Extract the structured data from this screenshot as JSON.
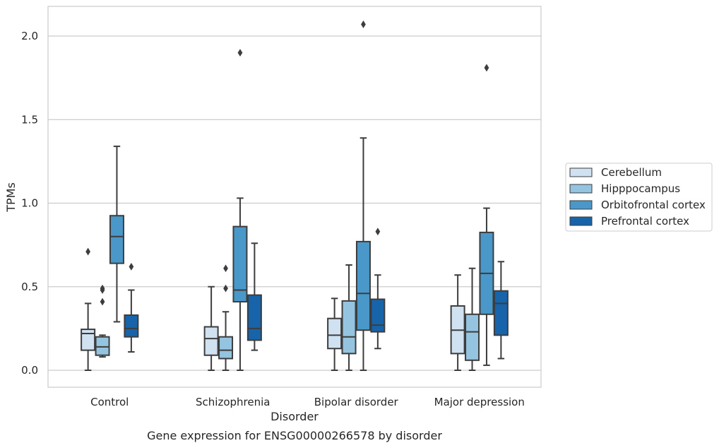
{
  "chart_data": {
    "type": "boxplot",
    "title": "",
    "caption": "Gene expression for ENSG00000266578 by disorder",
    "xlabel": "Disorder",
    "ylabel": "TPMs",
    "ylim": [
      -0.1,
      2.18
    ],
    "yticks": [
      "0.0",
      "0.5",
      "1.0",
      "1.5",
      "2.0"
    ],
    "grid": true,
    "legend_position": "right",
    "categories": [
      "Control",
      "Schizophrenia",
      "Bipolar disorder",
      "Major depression"
    ],
    "series": [
      {
        "name": "Cerebellum",
        "color": "#d0e1f2",
        "boxes": [
          {
            "whislo": 0.0,
            "q1": 0.12,
            "med": 0.22,
            "q3": 0.245,
            "whishi": 0.4,
            "fliers": [
              0.71
            ]
          },
          {
            "whislo": 0.0,
            "q1": 0.09,
            "med": 0.19,
            "q3": 0.26,
            "whishi": 0.5,
            "fliers": []
          },
          {
            "whislo": 0.0,
            "q1": 0.13,
            "med": 0.21,
            "q3": 0.31,
            "whishi": 0.43,
            "fliers": []
          },
          {
            "whislo": 0.0,
            "q1": 0.1,
            "med": 0.24,
            "q3": 0.385,
            "whishi": 0.57,
            "fliers": []
          }
        ]
      },
      {
        "name": "Hipppocampus",
        "color": "#94c4df",
        "boxes": [
          {
            "whislo": 0.08,
            "q1": 0.09,
            "med": 0.14,
            "q3": 0.2,
            "whishi": 0.21,
            "fliers": [
              0.41,
              0.48,
              0.49
            ]
          },
          {
            "whislo": 0.0,
            "q1": 0.07,
            "med": 0.12,
            "q3": 0.2,
            "whishi": 0.35,
            "fliers": [
              0.49,
              0.61
            ]
          },
          {
            "whislo": 0.0,
            "q1": 0.1,
            "med": 0.2,
            "q3": 0.415,
            "whishi": 0.63,
            "fliers": []
          },
          {
            "whislo": 0.0,
            "q1": 0.06,
            "med": 0.23,
            "q3": 0.335,
            "whishi": 0.61,
            "fliers": []
          }
        ]
      },
      {
        "name": "Orbitofrontal cortex",
        "color": "#4a98c9",
        "boxes": [
          {
            "whislo": 0.29,
            "q1": 0.64,
            "med": 0.8,
            "q3": 0.925,
            "whishi": 1.34,
            "fliers": []
          },
          {
            "whislo": 0.0,
            "q1": 0.41,
            "med": 0.48,
            "q3": 0.86,
            "whishi": 1.03,
            "fliers": [
              1.9
            ]
          },
          {
            "whislo": 0.0,
            "q1": 0.24,
            "med": 0.46,
            "q3": 0.77,
            "whishi": 1.39,
            "fliers": [
              2.07
            ]
          },
          {
            "whislo": 0.03,
            "q1": 0.335,
            "med": 0.58,
            "q3": 0.825,
            "whishi": 0.97,
            "fliers": [
              1.81
            ]
          }
        ]
      },
      {
        "name": "Prefrontal cortex",
        "color": "#1764ab",
        "boxes": [
          {
            "whislo": 0.11,
            "q1": 0.2,
            "med": 0.25,
            "q3": 0.33,
            "whishi": 0.48,
            "fliers": [
              0.62
            ]
          },
          {
            "whislo": 0.12,
            "q1": 0.18,
            "med": 0.25,
            "q3": 0.45,
            "whishi": 0.76,
            "fliers": []
          },
          {
            "whislo": 0.13,
            "q1": 0.23,
            "med": 0.27,
            "q3": 0.425,
            "whishi": 0.57,
            "fliers": [
              0.83
            ]
          },
          {
            "whislo": 0.07,
            "q1": 0.21,
            "med": 0.4,
            "q3": 0.475,
            "whishi": 0.65,
            "fliers": []
          }
        ]
      }
    ]
  }
}
